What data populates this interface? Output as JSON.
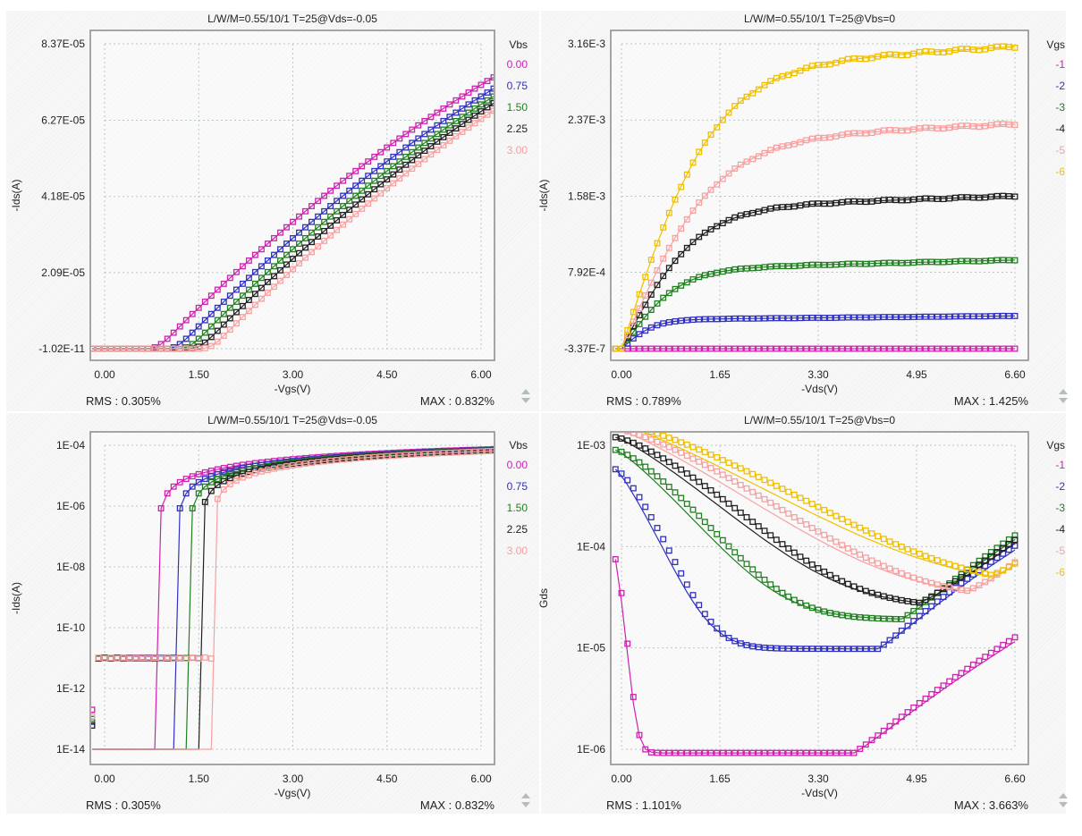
{
  "chart_data": [
    {
      "id": "p1",
      "type": "scatter+line",
      "title": "L/W/M=0.55/10/1   T=25@Vds=-0.05",
      "xlabel": "-Vgs(V)",
      "ylabel": "-Ids(A)",
      "yscale": "linear",
      "xlim": [
        -0.3,
        6.2
      ],
      "ylim": [
        -1.02e-11,
        8.37e-05
      ],
      "xticks": [
        0.0,
        1.5,
        3.0,
        4.5,
        6.0
      ],
      "xtick_labels": [
        "0.00",
        "1.50",
        "3.00",
        "4.50",
        "6.00"
      ],
      "yticks": [
        -1.02e-11,
        2.09e-05,
        4.18e-05,
        6.27e-05,
        8.37e-05
      ],
      "ytick_labels": [
        "-1.02E-11",
        "2.09E-05",
        "4.18E-05",
        "6.27E-05",
        "8.37E-05"
      ],
      "legend_title": "Vbs",
      "legend_position": "right",
      "rms": "RMS : 0.305%",
      "max": "MAX : 0.832%",
      "series": [
        {
          "name": "0.00",
          "color": "#d020b0",
          "vth": 0.85,
          "k": 1.72e-05,
          "theta": 0.22
        },
        {
          "name": "0.75",
          "color": "#3030c0",
          "vth": 1.15,
          "k": 1.72e-05,
          "theta": 0.22
        },
        {
          "name": "1.50",
          "color": "#208020",
          "vth": 1.35,
          "k": 1.72e-05,
          "theta": 0.22
        },
        {
          "name": "2.25",
          "color": "#202020",
          "vth": 1.52,
          "k": 1.72e-05,
          "theta": 0.22
        },
        {
          "name": "3.00",
          "color": "#f8a0a0",
          "vth": 1.7,
          "k": 1.72e-05,
          "theta": 0.22
        }
      ]
    },
    {
      "id": "p2",
      "type": "scatter+line",
      "title": "L/W/M=0.55/10/1   T=25@Vbs=0",
      "xlabel": "-Vds(V)",
      "ylabel": "-Ids(A)",
      "yscale": "linear",
      "xlim": [
        -0.2,
        6.7
      ],
      "ylim": [
        -3.37e-07,
        0.00316
      ],
      "xticks": [
        0.0,
        1.65,
        3.3,
        4.95,
        6.6
      ],
      "xtick_labels": [
        "0.00",
        "1.65",
        "3.30",
        "4.95",
        "6.60"
      ],
      "yticks": [
        -3.37e-07,
        0.000792,
        0.00158,
        0.00237,
        0.00316
      ],
      "ytick_labels": [
        "-3.37E-7",
        "7.92E-4",
        "1.58E-3",
        "2.37E-3",
        "3.16E-3"
      ],
      "legend_title": "Vgs",
      "legend_position": "right",
      "rms": "RMS : 0.789%",
      "max": "MAX : 1.425%",
      "series": [
        {
          "name": "-1",
          "color": "#d020b0",
          "isat": 0.0,
          "vsat": 0.5,
          "slope": 2e-06
        },
        {
          "name": "-2",
          "color": "#3030c0",
          "isat": 0.0003,
          "vsat": 0.55,
          "slope": 6e-06
        },
        {
          "name": "-3",
          "color": "#208020",
          "isat": 0.00082,
          "vsat": 0.95,
          "slope": 1.5e-05
        },
        {
          "name": "-4",
          "color": "#202020",
          "isat": 0.00145,
          "vsat": 1.25,
          "slope": 2e-05
        },
        {
          "name": "-5",
          "color": "#f8a0a0",
          "isat": 0.00215,
          "vsat": 1.55,
          "slope": 2.7e-05
        },
        {
          "name": "-6",
          "color": "#f0c000",
          "isat": 0.0029,
          "vsat": 1.55,
          "slope": 3.5e-05
        }
      ]
    },
    {
      "id": "p3",
      "type": "scatter+line",
      "title": "L/W/M=0.55/10/1   T=25@Vds=-0.05",
      "xlabel": "-Vgs(V)",
      "ylabel": "-Ids(A)",
      "yscale": "log",
      "xlim": [
        -0.3,
        6.2
      ],
      "ylim": [
        1e-14,
        0.0001
      ],
      "xticks": [
        0.0,
        1.5,
        3.0,
        4.5,
        6.0
      ],
      "xtick_labels": [
        "0.00",
        "1.50",
        "3.00",
        "4.50",
        "6.00"
      ],
      "yticks": [
        1e-14,
        1e-12,
        1e-10,
        1e-08,
        1e-06,
        0.0001
      ],
      "ytick_labels": [
        "1E-14",
        "1E-12",
        "1E-10",
        "1E-08",
        "1E-06",
        "1E-04"
      ],
      "legend_title": "Vbs",
      "legend_position": "right",
      "rms": "RMS : 0.305%",
      "max": "MAX : 0.832%",
      "series": [
        {
          "name": "0.00",
          "color": "#d020b0",
          "vth": 0.85,
          "floor_x": 0.0
        },
        {
          "name": "0.75",
          "color": "#3030c0",
          "vth": 1.15,
          "floor_x": 0.35
        },
        {
          "name": "1.50",
          "color": "#208020",
          "vth": 1.35,
          "floor_x": 0.6
        },
        {
          "name": "2.25",
          "color": "#202020",
          "vth": 1.52,
          "floor_x": 0.85
        },
        {
          "name": "3.00",
          "color": "#f8a0a0",
          "vth": 1.7,
          "floor_x": 1.1
        }
      ]
    },
    {
      "id": "p4",
      "type": "scatter+line",
      "title": "L/W/M=0.55/10/1   T=25@Vbs=0",
      "xlabel": "-Vds(V)",
      "ylabel": "Gds",
      "yscale": "log",
      "xlim": [
        -0.2,
        6.7
      ],
      "ylim": [
        1e-06,
        0.001
      ],
      "xticks": [
        0.0,
        1.65,
        3.3,
        4.95,
        6.6
      ],
      "xtick_labels": [
        "0.00",
        "1.65",
        "3.30",
        "4.95",
        "6.60"
      ],
      "yticks": [
        1e-06,
        1e-05,
        0.0001,
        0.001
      ],
      "ytick_labels": [
        "1E-06",
        "1E-05",
        "1E-04",
        "1E-03"
      ],
      "legend_title": "Vgs",
      "legend_position": "right",
      "rms": "RMS : 1.101%",
      "max": "MAX : 3.663%",
      "series": [
        {
          "name": "-1",
          "color": "#d020b0",
          "g0": 7.5e-05,
          "gmin": 9.2e-07,
          "xmin": 3.9,
          "gend": 3.2e-06,
          "tau": 0.12
        },
        {
          "name": "-2",
          "color": "#3030c0",
          "g0": 0.00058,
          "gmin": 9.8e-06,
          "xmin": 4.3,
          "gend": 3.4e-05,
          "tau": 0.55
        },
        {
          "name": "-3",
          "color": "#208020",
          "g0": 0.0009,
          "gmin": 1.9e-05,
          "xmin": 4.7,
          "gend": 4.3e-05,
          "tau": 1.0
        },
        {
          "name": "-4",
          "color": "#202020",
          "g0": 0.0012,
          "gmin": 2.5e-05,
          "xmin": 5.0,
          "gend": 3.6e-05,
          "tau": 1.35
        },
        {
          "name": "-5",
          "color": "#f8a0a0",
          "g0": 0.00145,
          "gmin": 3e-05,
          "xmin": 5.8,
          "gend": 3.6e-05,
          "tau": 1.7
        },
        {
          "name": "-6",
          "color": "#f0c000",
          "g0": 0.00165,
          "gmin": 3.8e-05,
          "xmin": 6.2,
          "gend": 4.2e-05,
          "tau": 2.0
        }
      ]
    }
  ]
}
